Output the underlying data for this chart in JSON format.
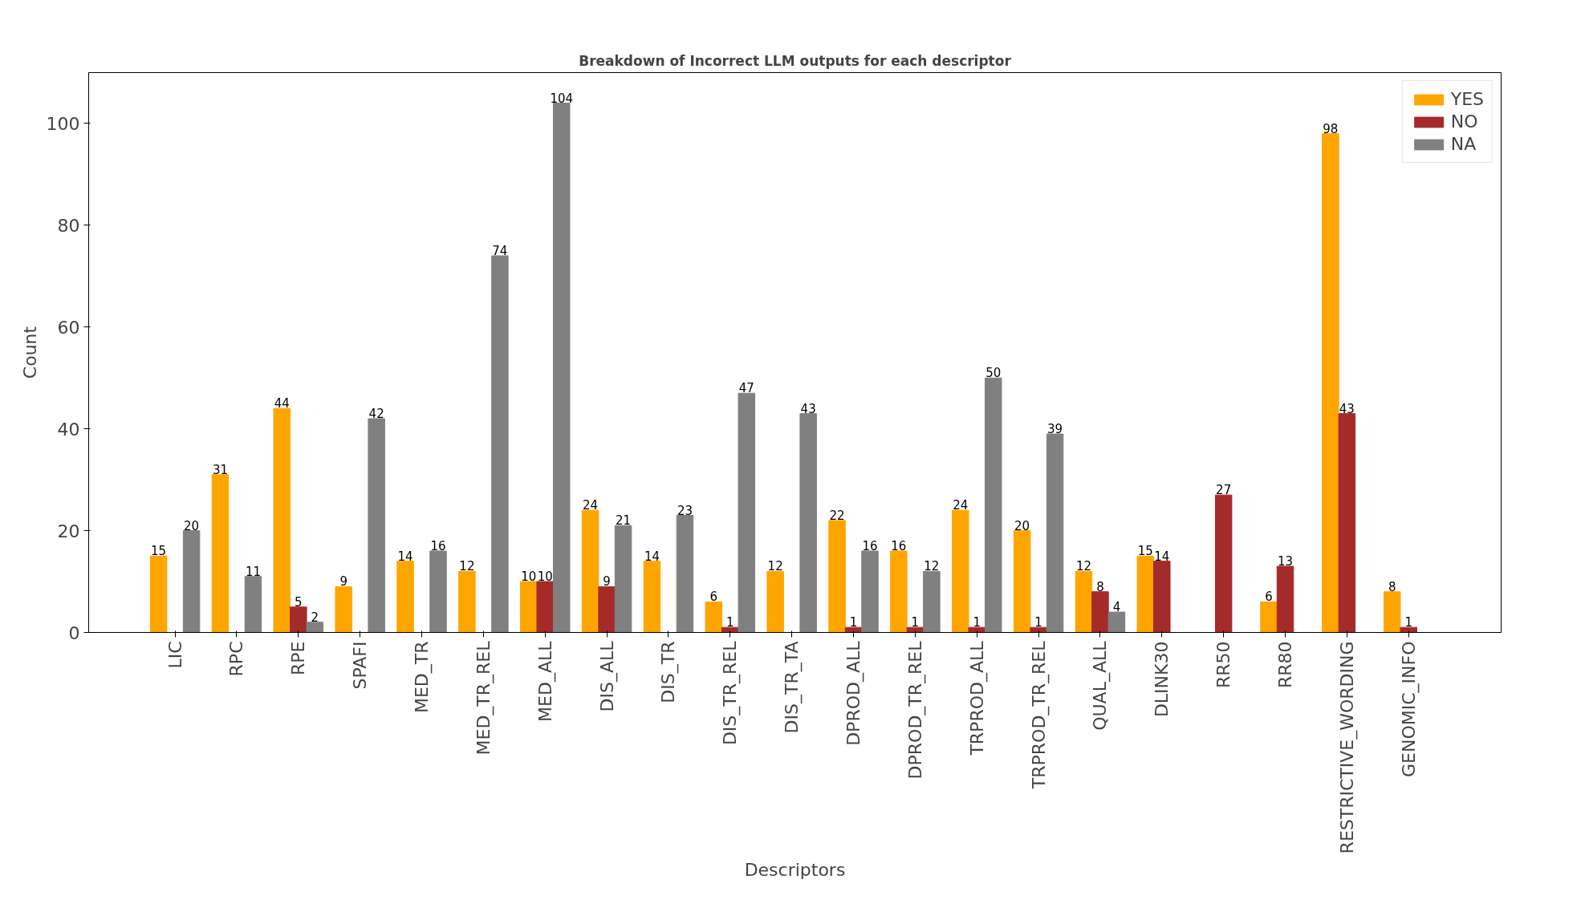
{
  "chart_data": {
    "type": "bar",
    "title": "Breakdown of Incorrect LLM outputs for each descriptor",
    "xlabel": "Descriptors",
    "ylabel": "Count",
    "categories": [
      "LIC",
      "RPC",
      "RPE",
      "SPAFI",
      "MED_TR",
      "MED_TR_REL",
      "MED_ALL",
      "DIS_ALL",
      "DIS_TR",
      "DIS_TR_REL",
      "DIS_TR_TA",
      "DPROD_ALL",
      "DPROD_TR_REL",
      "TRPROD_ALL",
      "TRPROD_TR_REL",
      "QUAL_ALL",
      "DLINK30",
      "RR50",
      "RR80",
      "RESTRICTIVE_WORDING",
      "GENOMIC_INFO"
    ],
    "series": [
      {
        "name": "YES",
        "color": "#ffa500",
        "values": [
          15,
          31,
          44,
          9,
          14,
          12,
          10,
          24,
          14,
          6,
          12,
          22,
          16,
          24,
          20,
          12,
          15,
          null,
          6,
          98,
          8
        ]
      },
      {
        "name": "NO",
        "color": "#a52a2a",
        "values": [
          null,
          null,
          5,
          null,
          null,
          null,
          10,
          9,
          null,
          1,
          null,
          1,
          1,
          1,
          1,
          8,
          14,
          27,
          13,
          43,
          1
        ]
      },
      {
        "name": "NA",
        "color": "#808080",
        "values": [
          20,
          11,
          2,
          42,
          16,
          74,
          104,
          21,
          23,
          47,
          43,
          16,
          12,
          50,
          39,
          4,
          null,
          null,
          null,
          null,
          null
        ]
      }
    ],
    "ylim": [
      0,
      110
    ],
    "yticks": [
      0,
      20,
      40,
      60,
      80,
      100
    ],
    "grid": false,
    "legend": "top right",
    "data_labels": true
  }
}
